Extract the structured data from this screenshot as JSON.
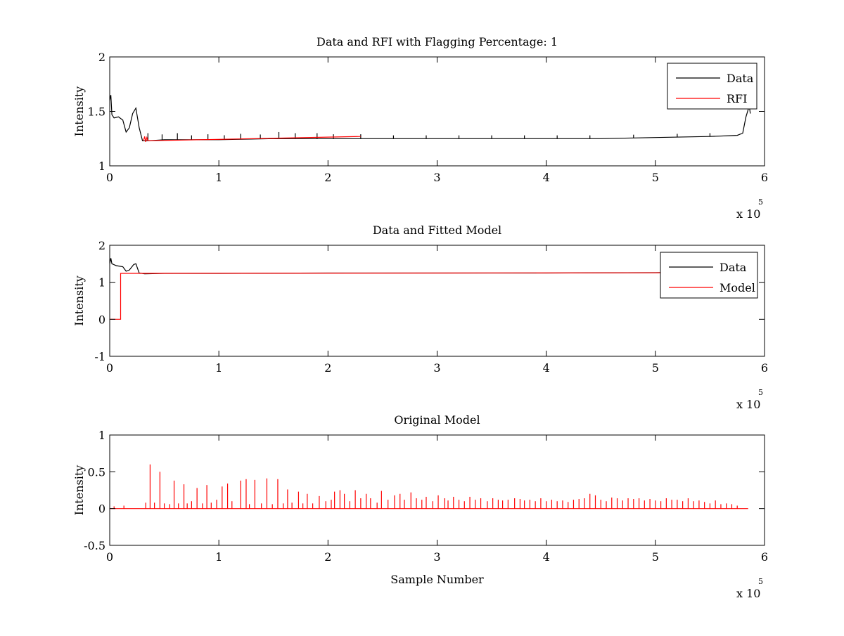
{
  "figure": {
    "background": "#ffffff",
    "colors": {
      "data": "#000000",
      "rfi": "#ff0000",
      "model": "#ff0000",
      "axes": "#000000"
    }
  },
  "chart_data": [
    {
      "type": "line",
      "title": "Data and RFI with Flagging Percentage: 1",
      "xlabel": "",
      "ylabel": "Intensity",
      "xlim": [
        0,
        6
      ],
      "ylim": [
        1,
        2
      ],
      "xticks": [
        "0",
        "1",
        "2",
        "3",
        "4",
        "5",
        "6"
      ],
      "yticks": [
        "1",
        "1.5",
        "2"
      ],
      "x_multiplier_label": "x 10",
      "x_multiplier_exponent": "5",
      "grid": false,
      "legend": {
        "placement": "top-right",
        "entries": [
          "Data",
          "RFI"
        ]
      },
      "series": [
        {
          "name": "Data",
          "color": "#000000",
          "x": [
            0,
            0.01,
            0.02,
            0.04,
            0.08,
            0.12,
            0.15,
            0.18,
            0.21,
            0.24,
            0.27,
            0.3,
            0.35,
            0.5,
            1,
            1.5,
            2,
            2.5,
            3,
            3.5,
            4,
            4.5,
            5,
            5.5,
            5.75,
            5.8,
            5.83,
            5.86,
            5.87
          ],
          "y": [
            1.6,
            1.65,
            1.47,
            1.44,
            1.45,
            1.42,
            1.31,
            1.35,
            1.48,
            1.53,
            1.35,
            1.23,
            1.23,
            1.24,
            1.24,
            1.25,
            1.25,
            1.25,
            1.25,
            1.25,
            1.25,
            1.25,
            1.26,
            1.27,
            1.28,
            1.3,
            1.45,
            1.55,
            1.48
          ],
          "spikes_x": [
            0.35,
            0.48,
            0.62,
            0.75,
            0.9,
            1.05,
            1.2,
            1.38,
            1.55,
            1.7,
            1.9,
            2.05,
            2.3,
            2.6,
            2.9,
            3.2,
            3.5,
            3.8,
            4.1,
            4.4,
            4.8,
            5.2,
            5.5
          ],
          "spikes_height": [
            0.07,
            0.05,
            0.06,
            0.04,
            0.05,
            0.04,
            0.05,
            0.04,
            0.06,
            0.05,
            0.05,
            0.04,
            0.04,
            0.03,
            0.03,
            0.03,
            0.03,
            0.03,
            0.03,
            0.03,
            0.03,
            0.03,
            0.03
          ]
        },
        {
          "name": "RFI",
          "color": "#ff0000",
          "x": [
            0.31,
            0.32,
            0.33,
            0.34,
            0.35,
            2.3
          ],
          "y": [
            1.23,
            1.27,
            1.22,
            1.26,
            1.23,
            1.27
          ]
        }
      ]
    },
    {
      "type": "line",
      "title": "Data and Fitted Model",
      "xlabel": "",
      "ylabel": "Intensity",
      "xlim": [
        0,
        6
      ],
      "ylim": [
        -1,
        2
      ],
      "xticks": [
        "0",
        "1",
        "2",
        "3",
        "4",
        "5",
        "6"
      ],
      "yticks": [
        "-1",
        "0",
        "1",
        "2"
      ],
      "x_multiplier_label": "x 10",
      "x_multiplier_exponent": "5",
      "grid": false,
      "legend": {
        "placement": "top-right",
        "entries": [
          "Data",
          "Model"
        ]
      },
      "series": [
        {
          "name": "Data",
          "color": "#000000",
          "x": [
            0,
            0.01,
            0.02,
            0.06,
            0.12,
            0.15,
            0.18,
            0.22,
            0.24,
            0.27,
            0.32,
            0.5,
            1,
            2,
            3,
            4,
            5,
            5.5,
            5.85
          ],
          "y": [
            1.5,
            1.65,
            1.5,
            1.45,
            1.42,
            1.3,
            1.33,
            1.48,
            1.5,
            1.25,
            1.23,
            1.24,
            1.24,
            1.25,
            1.25,
            1.25,
            1.26,
            1.28,
            1.3
          ]
        },
        {
          "name": "Model",
          "color": "#ff0000",
          "x": [
            0,
            0.1,
            0.1,
            5.85
          ],
          "y": [
            0,
            0,
            1.24,
            1.26
          ]
        }
      ]
    },
    {
      "type": "line",
      "title": "Original Model",
      "xlabel": "Sample Number",
      "ylabel": "Intensity",
      "xlim": [
        0,
        6
      ],
      "ylim": [
        -0.5,
        1
      ],
      "xticks": [
        "0",
        "1",
        "2",
        "3",
        "4",
        "5",
        "6"
      ],
      "yticks": [
        "-0.5",
        "0",
        "0.5",
        "1"
      ],
      "x_multiplier_label": "x 10",
      "x_multiplier_exponent": "5",
      "grid": false,
      "legend": null,
      "series": [
        {
          "name": "",
          "color": "#ff0000",
          "baseline": [
            0,
            5.85
          ],
          "spikes_x": [
            0.04,
            0.13,
            0.33,
            0.37,
            0.41,
            0.46,
            0.5,
            0.55,
            0.59,
            0.63,
            0.68,
            0.71,
            0.75,
            0.8,
            0.85,
            0.89,
            0.93,
            0.98,
            1.03,
            1.08,
            1.12,
            1.2,
            1.25,
            1.28,
            1.33,
            1.39,
            1.44,
            1.49,
            1.54,
            1.59,
            1.63,
            1.67,
            1.73,
            1.77,
            1.81,
            1.86,
            1.92,
            1.98,
            2.03,
            2.06,
            2.11,
            2.15,
            2.2,
            2.25,
            2.3,
            2.35,
            2.39,
            2.45,
            2.49,
            2.55,
            2.61,
            2.66,
            2.7,
            2.76,
            2.81,
            2.86,
            2.9,
            2.96,
            3.01,
            3.07,
            3.1,
            3.15,
            3.2,
            3.25,
            3.3,
            3.35,
            3.4,
            3.46,
            3.51,
            3.56,
            3.6,
            3.65,
            3.71,
            3.76,
            3.8,
            3.85,
            3.9,
            3.95,
            4.0,
            4.05,
            4.1,
            4.15,
            4.2,
            4.25,
            4.3,
            4.35,
            4.4,
            4.45,
            4.5,
            4.55,
            4.6,
            4.65,
            4.7,
            4.75,
            4.8,
            4.85,
            4.9,
            4.95,
            5.0,
            5.05,
            5.1,
            5.15,
            5.2,
            5.25,
            5.3,
            5.35,
            5.4,
            5.45,
            5.5,
            5.55,
            5.6,
            5.65,
            5.7,
            5.75
          ],
          "spikes_height": [
            0.03,
            0.04,
            0.08,
            0.6,
            0.08,
            0.5,
            0.07,
            0.06,
            0.38,
            0.07,
            0.33,
            0.07,
            0.1,
            0.28,
            0.07,
            0.32,
            0.08,
            0.12,
            0.3,
            0.34,
            0.1,
            0.38,
            0.4,
            0.06,
            0.39,
            0.07,
            0.41,
            0.06,
            0.4,
            0.07,
            0.26,
            0.08,
            0.23,
            0.07,
            0.2,
            0.07,
            0.17,
            0.1,
            0.12,
            0.23,
            0.25,
            0.2,
            0.1,
            0.25,
            0.14,
            0.2,
            0.14,
            0.08,
            0.24,
            0.12,
            0.18,
            0.2,
            0.12,
            0.22,
            0.14,
            0.12,
            0.16,
            0.1,
            0.18,
            0.14,
            0.11,
            0.16,
            0.12,
            0.1,
            0.16,
            0.12,
            0.14,
            0.1,
            0.14,
            0.12,
            0.11,
            0.12,
            0.14,
            0.13,
            0.11,
            0.12,
            0.1,
            0.14,
            0.1,
            0.12,
            0.1,
            0.11,
            0.09,
            0.12,
            0.13,
            0.14,
            0.2,
            0.18,
            0.12,
            0.1,
            0.15,
            0.14,
            0.11,
            0.14,
            0.13,
            0.14,
            0.11,
            0.13,
            0.11,
            0.1,
            0.14,
            0.12,
            0.12,
            0.1,
            0.14,
            0.1,
            0.11,
            0.09,
            0.07,
            0.11,
            0.06,
            0.07,
            0.06,
            0.04
          ]
        }
      ]
    }
  ]
}
